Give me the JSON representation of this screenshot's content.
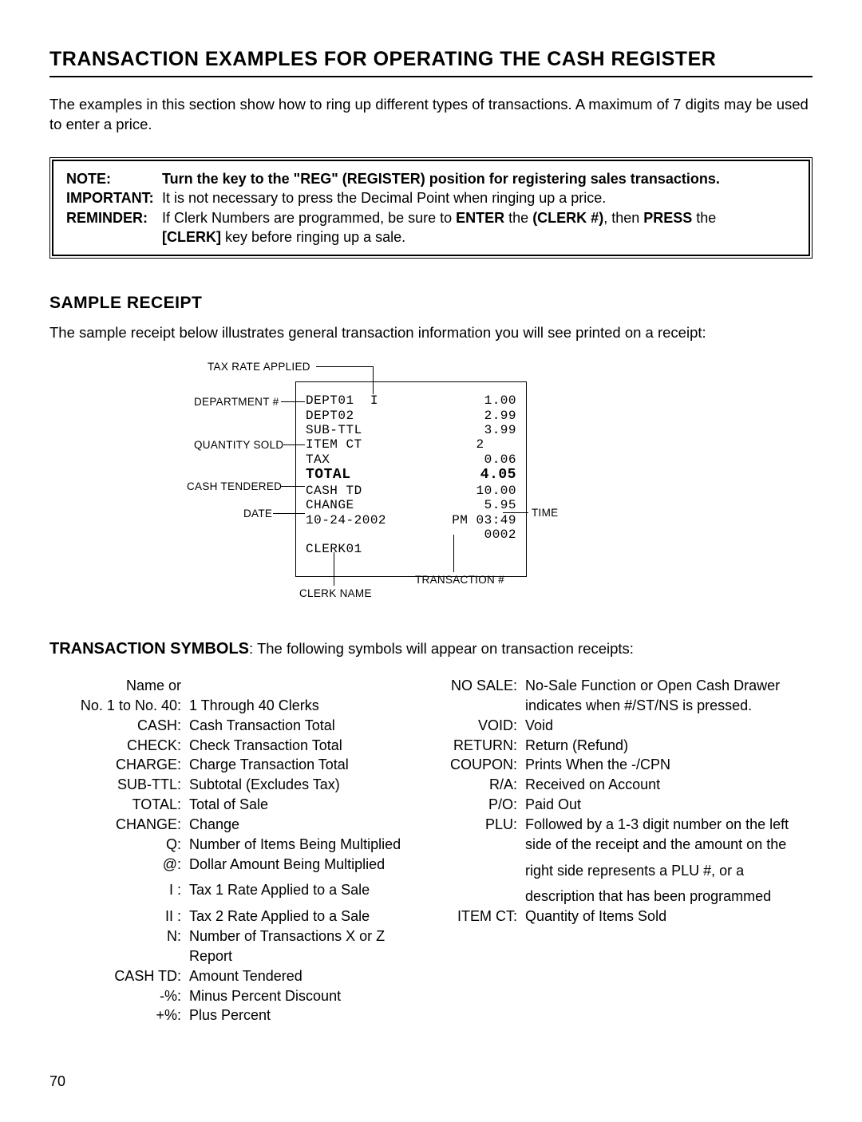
{
  "title": "TRANSACTION EXAMPLES FOR OPERATING THE CASH REGISTER",
  "intro": "The examples in this section show how to ring up different types of transactions.  A maximum of 7 digits may be used to enter a price.",
  "noteBox": {
    "rows": [
      {
        "label": "NOTE:",
        "labelBold": true,
        "parts": [
          {
            "t": "Turn the key to the \"REG\" (REGISTER) position for registering sales transactions.",
            "b": true
          }
        ]
      },
      {
        "label": "IMPORTANT:",
        "labelBold": true,
        "parts": [
          {
            "t": "It is not necessary to press the Decimal Point when ringing up a price."
          }
        ]
      },
      {
        "label": "REMINDER:",
        "labelBold": true,
        "parts": [
          {
            "t": "If Clerk Numbers are programmed, be sure to "
          },
          {
            "t": "ENTER",
            "b": true
          },
          {
            "t": " the "
          },
          {
            "t": "(CLERK #)",
            "b": true
          },
          {
            "t": ", then "
          },
          {
            "t": "PRESS",
            "b": true
          },
          {
            "t": " the"
          }
        ]
      },
      {
        "label": "",
        "labelBold": false,
        "parts": [
          {
            "t": "[CLERK]",
            "b": true
          },
          {
            "t": " key before ringing up a sale."
          }
        ]
      }
    ]
  },
  "sampleReceiptHeading": "SAMPLE RECEIPT",
  "sampleReceiptText": "The sample receipt below illustrates general transaction information you will see printed on a receipt:",
  "receipt": {
    "rows": [
      {
        "left": "DEPT01  I",
        "right": "1.00"
      },
      {
        "left": "DEPT02",
        "right": "2.99"
      },
      {
        "left": "SUB-TTL",
        "right": "3.99"
      },
      {
        "left": "ITEM CT",
        "right": "2    "
      },
      {
        "left": "TAX",
        "right": "0.06"
      },
      {
        "left": "TOTAL",
        "right": "4.05",
        "total": true
      },
      {
        "left": "CASH TD",
        "right": "10.00"
      },
      {
        "left": "CHANGE",
        "right": "5.95"
      },
      {
        "left": "10-24-2002",
        "right": "PM 03:49"
      },
      {
        "left": "",
        "right": "0002"
      },
      {
        "left": "CLERK01",
        "right": ""
      }
    ]
  },
  "annotations": {
    "taxRateApplied": "TAX RATE APPLIED",
    "departmentNumber": "DEPARTMENT #",
    "quantitySold": "QUANTITY SOLD",
    "cashTendered": "CASH TENDERED",
    "date": "DATE",
    "time": "TIME",
    "transactionNumber": "TRANSACTION #",
    "clerkName": "CLERK NAME"
  },
  "transactionSymbolsHeading": "TRANSACTION SYMBOLS",
  "transactionSymbolsText": ":  The following symbols will appear on transaction receipts:",
  "symbols": {
    "left": [
      {
        "label": "Name or",
        "text": ""
      },
      {
        "label": "No. 1 to No. 40:",
        "text": "1 Through 40 Clerks"
      },
      {
        "label": "CASH:",
        "text": "Cash Transaction Total"
      },
      {
        "label": "CHECK:",
        "text": "Check Transaction Total"
      },
      {
        "label": "CHARGE:",
        "text": "Charge Transaction Total"
      },
      {
        "label": "SUB-TTL:",
        "text": "Subtotal (Excludes Tax)"
      },
      {
        "label": "TOTAL:",
        "text": "Total of Sale"
      },
      {
        "label": "CHANGE:",
        "text": "Change"
      },
      {
        "label": "Q:",
        "text": "Number of Items Being Multiplied"
      },
      {
        "label": "@:",
        "text": "Dollar Amount Being Multiplied"
      },
      {
        "label": "I  :",
        "text": "Tax 1 Rate Applied to a Sale",
        "pad": true
      },
      {
        "label": "II  :",
        "text": "Tax 2 Rate Applied to a Sale",
        "pad": true
      },
      {
        "label": "N:",
        "text": "Number of Transactions X or Z Report"
      },
      {
        "label": "CASH TD:",
        "text": "Amount Tendered"
      },
      {
        "label": "-%:",
        "text": "Minus Percent Discount"
      },
      {
        "label": "+%:",
        "text": "Plus Percent"
      }
    ],
    "right": [
      {
        "label": "",
        "text": ""
      },
      {
        "label": "NO SALE:",
        "text": "No-Sale Function or Open Cash Drawer"
      },
      {
        "label": "",
        "text": "indicates when #/ST/NS is pressed."
      },
      {
        "label": "VOID:",
        "text": "Void"
      },
      {
        "label": "RETURN:",
        "text": "Return (Refund)"
      },
      {
        "label": "COUPON:",
        "text": "Prints When the -/CPN"
      },
      {
        "label": "R/A:",
        "text": "Received on Account"
      },
      {
        "label": "P/O:",
        "text": "Paid Out"
      },
      {
        "label": "PLU:",
        "text": "Followed by a 1-3 digit number on the left"
      },
      {
        "label": "",
        "text": "side of the receipt and the amount on the"
      },
      {
        "label": "",
        "text": "right side represents a PLU #, or a",
        "pad": true
      },
      {
        "label": "",
        "text": "description that has been programmed",
        "pad": true
      },
      {
        "label": "ITEM CT:",
        "text": "Quantity of Items Sold"
      }
    ]
  },
  "pageNumber": "70"
}
